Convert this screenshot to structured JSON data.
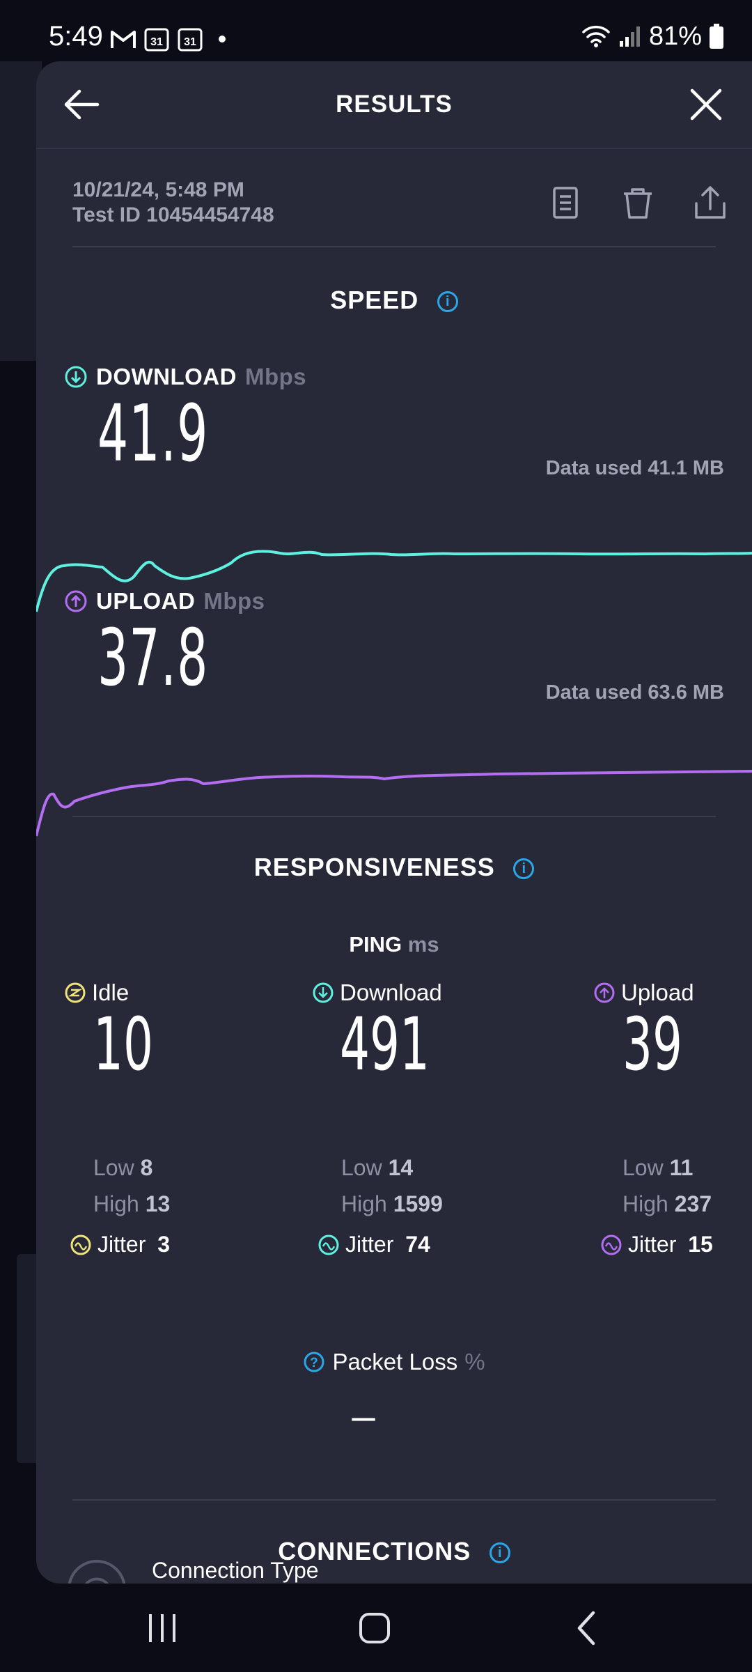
{
  "status_bar": {
    "time": "5:49",
    "battery": "81%"
  },
  "header": {
    "title": "RESULTS"
  },
  "meta": {
    "date": "10/21/24, 5:48 PM",
    "test_id_label": "Test ID",
    "test_id": "10454454748"
  },
  "speed": {
    "title": "SPEED",
    "download": {
      "label": "DOWNLOAD",
      "unit": "Mbps",
      "value": "41.9",
      "data_used": "Data used 41.1 MB",
      "color": "#5ef1e0"
    },
    "upload": {
      "label": "UPLOAD",
      "unit": "Mbps",
      "value": "37.8",
      "data_used": "Data used 63.6 MB",
      "color": "#b36ef2"
    }
  },
  "responsiveness": {
    "title": "RESPONSIVENESS",
    "ping_label": "PING",
    "ping_unit": "ms",
    "low_label": "Low",
    "high_label": "High",
    "jitter_label": "Jitter",
    "idle": {
      "label": "Idle",
      "value": "10",
      "low": "8",
      "high": "13",
      "jitter": "3",
      "color": "#f0e37a"
    },
    "download": {
      "label": "Download",
      "value": "491",
      "low": "14",
      "high": "1599",
      "jitter": "74",
      "color": "#5ef1e0"
    },
    "upload": {
      "label": "Upload",
      "value": "39",
      "low": "11",
      "high": "237",
      "jitter": "15",
      "color": "#b36ef2"
    },
    "packet_loss": {
      "label": "Packet Loss",
      "unit": "%",
      "value": "–"
    }
  },
  "connections": {
    "title": "CONNECTIONS",
    "connection_type_label": "Connection Type"
  },
  "accent": "#2aa7e6"
}
